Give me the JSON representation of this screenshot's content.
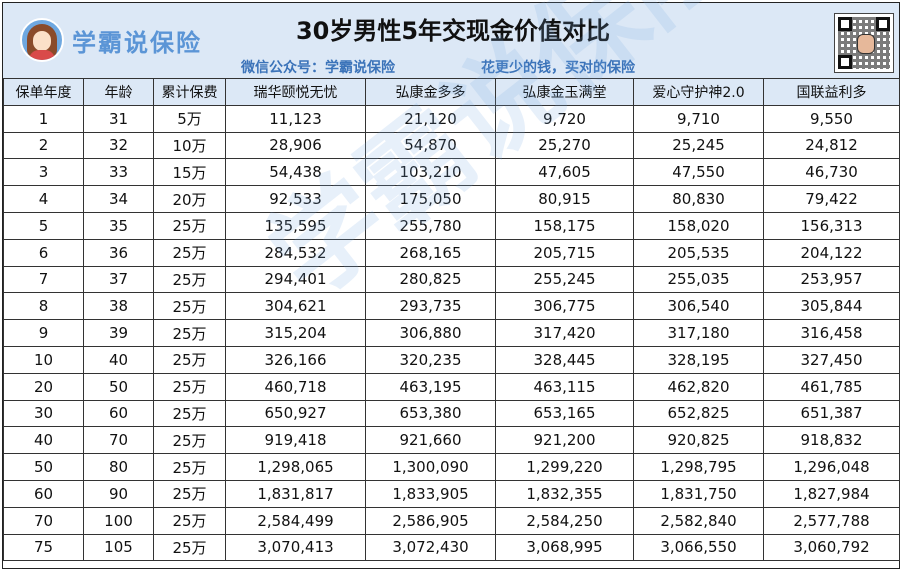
{
  "header": {
    "brand_name": "学霸说保险",
    "title": "30岁男性5年交现金价值对比",
    "subtitle_left": "微信公众号：学霸说保险",
    "subtitle_right": "花更少的钱，买对的保险",
    "avatar_icon": "cartoon-girl-avatar-icon",
    "qr_icon": "qr-code-icon",
    "header_bg": "#dce8f6",
    "highlight_color": "#e31010"
  },
  "watermark": "学霸说保险",
  "table": {
    "columns": [
      "保单年度",
      "年龄",
      "累计保费",
      "瑞华颐悦无忧",
      "弘康金多多",
      "弘康金玉满堂",
      "爱心守护神2.0",
      "国联益利多"
    ],
    "rows": [
      {
        "cells": [
          "1",
          "31",
          "5万",
          "11,123",
          "21,120",
          "9,720",
          "9,710",
          "9,550"
        ],
        "highlight": 4
      },
      {
        "cells": [
          "2",
          "32",
          "10万",
          "28,906",
          "54,870",
          "25,270",
          "25,245",
          "24,812"
        ],
        "highlight": 4
      },
      {
        "cells": [
          "3",
          "33",
          "15万",
          "54,438",
          "103,210",
          "47,605",
          "47,550",
          "46,730"
        ],
        "highlight": 4
      },
      {
        "cells": [
          "4",
          "34",
          "20万",
          "92,533",
          "175,050",
          "80,915",
          "80,830",
          "79,422"
        ],
        "highlight": 4
      },
      {
        "cells": [
          "5",
          "35",
          "25万",
          "135,595",
          "255,780",
          "158,175",
          "158,020",
          "156,313"
        ],
        "highlight": 4
      },
      {
        "cells": [
          "6",
          "36",
          "25万",
          "284,532",
          "268,165",
          "205,715",
          "205,535",
          "204,122"
        ],
        "highlight": 3
      },
      {
        "cells": [
          "7",
          "37",
          "25万",
          "294,401",
          "280,825",
          "255,245",
          "255,035",
          "253,957"
        ],
        "highlight": 3
      },
      {
        "cells": [
          "8",
          "38",
          "25万",
          "304,621",
          "293,735",
          "306,775",
          "306,540",
          "305,844"
        ],
        "highlight": 5
      },
      {
        "cells": [
          "9",
          "39",
          "25万",
          "315,204",
          "306,880",
          "317,420",
          "317,180",
          "316,458"
        ],
        "highlight": 5
      },
      {
        "cells": [
          "10",
          "40",
          "25万",
          "326,166",
          "320,235",
          "328,445",
          "328,195",
          "327,450"
        ],
        "highlight": 5
      },
      {
        "cells": [
          "20",
          "50",
          "25万",
          "460,718",
          "463,195",
          "463,115",
          "462,820",
          "461,785"
        ],
        "highlight": 4
      },
      {
        "cells": [
          "30",
          "60",
          "25万",
          "650,927",
          "653,380",
          "653,165",
          "652,825",
          "651,387"
        ],
        "highlight": 4
      },
      {
        "cells": [
          "40",
          "70",
          "25万",
          "919,418",
          "921,660",
          "921,200",
          "920,825",
          "918,832"
        ],
        "highlight": 4
      },
      {
        "cells": [
          "50",
          "80",
          "25万",
          "1,298,065",
          "1,300,090",
          "1,299,220",
          "1,298,795",
          "1,296,048"
        ],
        "highlight": 4
      },
      {
        "cells": [
          "60",
          "90",
          "25万",
          "1,831,817",
          "1,833,905",
          "1,832,355",
          "1,831,750",
          "1,827,984"
        ],
        "highlight": 4
      },
      {
        "cells": [
          "70",
          "100",
          "25万",
          "2,584,499",
          "2,586,905",
          "2,584,250",
          "2,582,840",
          "2,577,788"
        ],
        "highlight": 4
      },
      {
        "cells": [
          "75",
          "105",
          "25万",
          "3,070,413",
          "3,072,430",
          "3,068,995",
          "3,066,550",
          "3,060,792"
        ],
        "highlight": 4
      }
    ]
  }
}
